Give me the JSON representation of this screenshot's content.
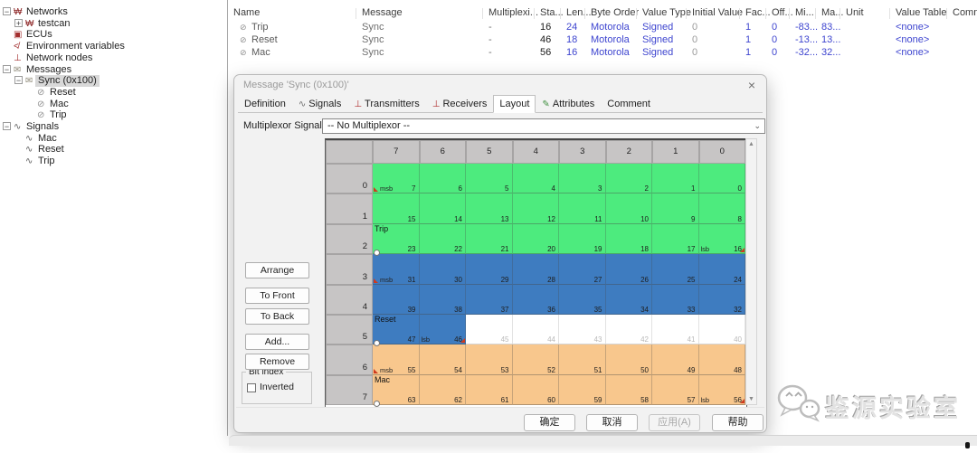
{
  "sidebar": {
    "items": [
      {
        "label": "Networks",
        "level": 0,
        "icon": "network",
        "expander": "minus"
      },
      {
        "label": "testcan",
        "level": 1,
        "icon": "network",
        "expander": "plus"
      },
      {
        "label": "ECUs",
        "level": 0,
        "icon": "ecu"
      },
      {
        "label": "Environment variables",
        "level": 0,
        "icon": "envvar"
      },
      {
        "label": "Network nodes",
        "level": 0,
        "icon": "node"
      },
      {
        "label": "Messages",
        "level": 0,
        "icon": "message",
        "expander": "minus"
      },
      {
        "label": "Sync (0x100)",
        "level": 1,
        "icon": "message",
        "expander": "minus",
        "selected": true
      },
      {
        "label": "Reset",
        "level": 2,
        "icon": "sigmsg"
      },
      {
        "label": "Mac",
        "level": 2,
        "icon": "sigmsg"
      },
      {
        "label": "Trip",
        "level": 2,
        "icon": "sigmsg"
      },
      {
        "label": "Signals",
        "level": 0,
        "icon": "wave",
        "expander": "minus"
      },
      {
        "label": "Mac",
        "level": 1,
        "icon": "wave"
      },
      {
        "label": "Reset",
        "level": 1,
        "icon": "wave"
      },
      {
        "label": "Trip",
        "level": 1,
        "icon": "wave"
      }
    ]
  },
  "table": {
    "columns": [
      "Name",
      "Message",
      "Multiplexi...",
      "Sta...",
      "Len...",
      "Byte Order",
      "Value Type",
      "Initial Value",
      "Fac...",
      "Off...",
      "Mi...",
      "Ma...",
      "Unit",
      "Value Table",
      "Comm"
    ],
    "rows": [
      [
        "Trip",
        "Sync",
        "-",
        "16",
        "24",
        "Motorola",
        "Signed",
        "0",
        "1",
        "0",
        "-83...",
        "83...",
        "",
        "<none>",
        ""
      ],
      [
        "Reset",
        "Sync",
        "-",
        "46",
        "18",
        "Motorola",
        "Signed",
        "0",
        "1",
        "0",
        "-13...",
        "13...",
        "",
        "<none>",
        ""
      ],
      [
        "Mac",
        "Sync",
        "-",
        "56",
        "16",
        "Motorola",
        "Signed",
        "0",
        "1",
        "0",
        "-32...",
        "32...",
        "",
        "<none>",
        ""
      ]
    ]
  },
  "dialog": {
    "title": "Message 'Sync (0x100)'",
    "close_icon": "close-icon",
    "tabs": [
      {
        "label": "Definition"
      },
      {
        "label": "Signals",
        "icon": "signal"
      },
      {
        "label": "Transmitters",
        "icon": "ecu"
      },
      {
        "label": "Receivers",
        "icon": "ecu"
      },
      {
        "label": "Layout",
        "active": true
      },
      {
        "label": "Attributes",
        "icon": "pencil"
      },
      {
        "label": "Comment"
      }
    ],
    "multiplexor": {
      "label": "Multiplexor Signal:",
      "value": "-- No Multiplexor --"
    },
    "side_buttons": [
      "Arrange",
      "To Front",
      "To Back",
      "Add...",
      "Remove"
    ],
    "bit_index": {
      "legend": "Bit index",
      "checkbox_label": "Inverted",
      "checked": false
    },
    "footer_buttons": [
      {
        "label": "确定",
        "disabled": false
      },
      {
        "label": "取消",
        "disabled": false
      },
      {
        "label": "应用(A)",
        "disabled": true
      },
      {
        "label": "帮助",
        "disabled": false
      }
    ]
  },
  "bit_grid": {
    "col_headers": [
      "7",
      "6",
      "5",
      "4",
      "3",
      "2",
      "1",
      "0"
    ],
    "row_headers": [
      "0",
      "1",
      "2",
      "3",
      "4",
      "5",
      "6",
      "7"
    ],
    "colors": {
      "trip": "#4deb7e",
      "reset": "#3e7cc0",
      "mac": "#f8c78d",
      "empty": "#ffffff"
    },
    "rows": [
      [
        {
          "b": "7",
          "s": "trip",
          "t": "msb"
        },
        {
          "b": "6",
          "s": "trip"
        },
        {
          "b": "5",
          "s": "trip"
        },
        {
          "b": "4",
          "s": "trip"
        },
        {
          "b": "3",
          "s": "trip"
        },
        {
          "b": "2",
          "s": "trip"
        },
        {
          "b": "1",
          "s": "trip"
        },
        {
          "b": "0",
          "s": "trip"
        }
      ],
      [
        {
          "b": "15",
          "s": "trip"
        },
        {
          "b": "14",
          "s": "trip"
        },
        {
          "b": "13",
          "s": "trip"
        },
        {
          "b": "12",
          "s": "trip"
        },
        {
          "b": "11",
          "s": "trip"
        },
        {
          "b": "10",
          "s": "trip"
        },
        {
          "b": "9",
          "s": "trip"
        },
        {
          "b": "8",
          "s": "trip"
        }
      ],
      [
        {
          "b": "23",
          "s": "trip",
          "l": "Trip",
          "h": true
        },
        {
          "b": "22",
          "s": "trip"
        },
        {
          "b": "21",
          "s": "trip"
        },
        {
          "b": "20",
          "s": "trip"
        },
        {
          "b": "19",
          "s": "trip"
        },
        {
          "b": "18",
          "s": "trip"
        },
        {
          "b": "17",
          "s": "trip"
        },
        {
          "b": "16",
          "s": "trip",
          "t": "lsb"
        }
      ],
      [
        {
          "b": "31",
          "s": "reset",
          "t": "msb"
        },
        {
          "b": "30",
          "s": "reset"
        },
        {
          "b": "29",
          "s": "reset"
        },
        {
          "b": "28",
          "s": "reset"
        },
        {
          "b": "27",
          "s": "reset"
        },
        {
          "b": "26",
          "s": "reset"
        },
        {
          "b": "25",
          "s": "reset"
        },
        {
          "b": "24",
          "s": "reset"
        }
      ],
      [
        {
          "b": "39",
          "s": "reset"
        },
        {
          "b": "38",
          "s": "reset"
        },
        {
          "b": "37",
          "s": "reset"
        },
        {
          "b": "36",
          "s": "reset"
        },
        {
          "b": "35",
          "s": "reset"
        },
        {
          "b": "34",
          "s": "reset"
        },
        {
          "b": "33",
          "s": "reset"
        },
        {
          "b": "32",
          "s": "reset"
        }
      ],
      [
        {
          "b": "47",
          "s": "reset",
          "l": "Reset",
          "h": true
        },
        {
          "b": "46",
          "s": "reset",
          "t": "lsb"
        },
        {
          "b": "45",
          "s": "empty"
        },
        {
          "b": "44",
          "s": "empty"
        },
        {
          "b": "43",
          "s": "empty"
        },
        {
          "b": "42",
          "s": "empty"
        },
        {
          "b": "41",
          "s": "empty"
        },
        {
          "b": "40",
          "s": "empty"
        }
      ],
      [
        {
          "b": "55",
          "s": "mac",
          "t": "msb"
        },
        {
          "b": "54",
          "s": "mac"
        },
        {
          "b": "53",
          "s": "mac"
        },
        {
          "b": "52",
          "s": "mac"
        },
        {
          "b": "51",
          "s": "mac"
        },
        {
          "b": "50",
          "s": "mac"
        },
        {
          "b": "49",
          "s": "mac"
        },
        {
          "b": "48",
          "s": "mac"
        }
      ],
      [
        {
          "b": "63",
          "s": "mac",
          "l": "Mac",
          "h": true
        },
        {
          "b": "62",
          "s": "mac"
        },
        {
          "b": "61",
          "s": "mac"
        },
        {
          "b": "60",
          "s": "mac"
        },
        {
          "b": "59",
          "s": "mac"
        },
        {
          "b": "58",
          "s": "mac"
        },
        {
          "b": "57",
          "s": "mac"
        },
        {
          "b": "56",
          "s": "mac",
          "t": "lsb"
        }
      ]
    ]
  },
  "watermark": {
    "text": "鉴源实验室",
    "icon": "wechat-icon"
  }
}
